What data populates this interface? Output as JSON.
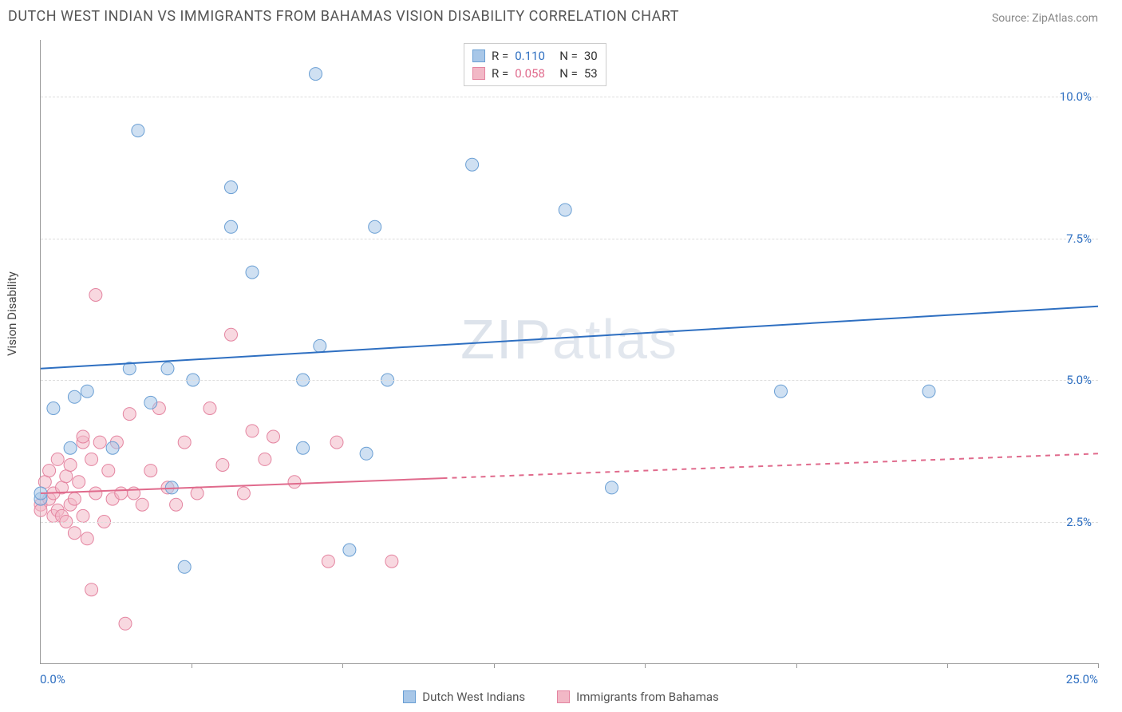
{
  "title": "DUTCH WEST INDIAN VS IMMIGRANTS FROM BAHAMAS VISION DISABILITY CORRELATION CHART",
  "source": "Source: ZipAtlas.com",
  "watermark": "ZIPatlas",
  "ylabel": "Vision Disability",
  "colors": {
    "series_a_fill": "#a8c7e8",
    "series_a_stroke": "#6a9fd4",
    "series_a_line": "#2e6fc1",
    "series_a_value": "#2e6fc1",
    "series_b_fill": "#f2b8c6",
    "series_b_stroke": "#e484a0",
    "series_b_line": "#e06a8c",
    "series_b_value": "#e06a8c",
    "grid": "#dddddd",
    "axis": "#999999",
    "ytick_text": "#2e6fc1",
    "xtick_text": "#2e6fc1",
    "title_text": "#555555",
    "source_text": "#888888"
  },
  "series_a": {
    "name": "Dutch West Indians",
    "r_label": "R =",
    "r_value": "0.110",
    "n_label": "N =",
    "n_value": "30"
  },
  "series_b": {
    "name": "Immigrants from Bahamas",
    "r_label": "R =",
    "r_value": "0.058",
    "n_label": "N =",
    "n_value": "53"
  },
  "axes": {
    "x": {
      "min": 0.0,
      "max": 25.0,
      "ticks_at": [
        3.57,
        7.14,
        10.71,
        14.29,
        17.86,
        21.43,
        25.0
      ],
      "label_min": "0.0%",
      "label_max": "25.0%"
    },
    "y": {
      "min": 0.0,
      "max": 11.0,
      "grid": [
        2.5,
        5.0,
        7.5,
        10.0
      ],
      "labels": [
        "2.5%",
        "5.0%",
        "7.5%",
        "10.0%"
      ]
    }
  },
  "marker_radius": 8,
  "marker_opacity": 0.55,
  "line_width": 2,
  "trend_a": {
    "y_at_x0": 5.2,
    "y_at_xmax": 6.3,
    "solid_until_x": 25.0
  },
  "trend_b": {
    "y_at_x0": 3.0,
    "y_at_xmax": 3.7,
    "solid_until_x": 9.5
  },
  "points_a": [
    [
      0.0,
      2.9
    ],
    [
      0.0,
      3.0
    ],
    [
      0.3,
      4.5
    ],
    [
      0.8,
      4.7
    ],
    [
      1.1,
      4.8
    ],
    [
      0.7,
      3.8
    ],
    [
      2.1,
      5.2
    ],
    [
      1.7,
      3.8
    ],
    [
      2.3,
      9.4
    ],
    [
      2.6,
      4.6
    ],
    [
      3.1,
      3.1
    ],
    [
      3.0,
      5.2
    ],
    [
      3.6,
      5.0
    ],
    [
      3.4,
      1.7
    ],
    [
      4.5,
      7.7
    ],
    [
      4.5,
      8.4
    ],
    [
      5.0,
      6.9
    ],
    [
      6.2,
      3.8
    ],
    [
      6.2,
      5.0
    ],
    [
      6.6,
      5.6
    ],
    [
      6.5,
      10.4
    ],
    [
      7.9,
      7.7
    ],
    [
      7.3,
      2.0
    ],
    [
      8.2,
      5.0
    ],
    [
      7.7,
      3.7
    ],
    [
      10.2,
      8.8
    ],
    [
      12.4,
      8.0
    ],
    [
      13.5,
      3.1
    ],
    [
      17.5,
      4.8
    ],
    [
      21.0,
      4.8
    ]
  ],
  "points_b": [
    [
      0.0,
      2.8
    ],
    [
      0.0,
      2.7
    ],
    [
      0.1,
      3.2
    ],
    [
      0.2,
      2.9
    ],
    [
      0.2,
      3.4
    ],
    [
      0.3,
      2.6
    ],
    [
      0.3,
      3.0
    ],
    [
      0.4,
      2.7
    ],
    [
      0.4,
      3.6
    ],
    [
      0.5,
      2.6
    ],
    [
      0.5,
      3.1
    ],
    [
      0.6,
      2.5
    ],
    [
      0.6,
      3.3
    ],
    [
      0.7,
      2.8
    ],
    [
      0.7,
      3.5
    ],
    [
      0.8,
      2.3
    ],
    [
      0.8,
      2.9
    ],
    [
      0.9,
      3.2
    ],
    [
      1.0,
      2.6
    ],
    [
      1.0,
      3.9
    ],
    [
      1.1,
      2.2
    ],
    [
      1.2,
      3.6
    ],
    [
      1.3,
      3.0
    ],
    [
      1.3,
      6.5
    ],
    [
      1.4,
      3.9
    ],
    [
      1.5,
      2.5
    ],
    [
      1.6,
      3.4
    ],
    [
      1.7,
      2.9
    ],
    [
      1.2,
      1.3
    ],
    [
      1.8,
      3.9
    ],
    [
      1.9,
      3.0
    ],
    [
      2.0,
      0.7
    ],
    [
      2.1,
      4.4
    ],
    [
      2.2,
      3.0
    ],
    [
      2.4,
      2.8
    ],
    [
      2.6,
      3.4
    ],
    [
      2.8,
      4.5
    ],
    [
      3.0,
      3.1
    ],
    [
      3.2,
      2.8
    ],
    [
      3.4,
      3.9
    ],
    [
      3.7,
      3.0
    ],
    [
      4.0,
      4.5
    ],
    [
      4.3,
      3.5
    ],
    [
      4.5,
      5.8
    ],
    [
      4.8,
      3.0
    ],
    [
      5.0,
      4.1
    ],
    [
      5.3,
      3.6
    ],
    [
      5.5,
      4.0
    ],
    [
      6.0,
      3.2
    ],
    [
      6.8,
      1.8
    ],
    [
      7.0,
      3.9
    ],
    [
      8.3,
      1.8
    ],
    [
      1.0,
      4.0
    ]
  ]
}
